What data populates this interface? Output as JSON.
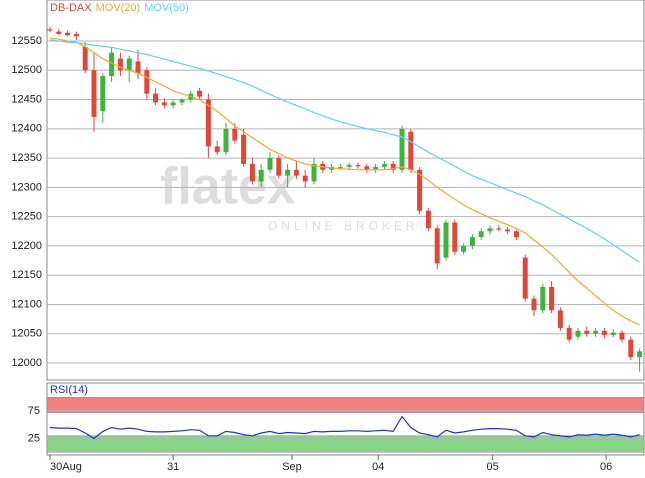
{
  "chart_data": [
    {
      "type": "candlestick",
      "watermark": "flatex",
      "watermark_sub": "ONLINE BROKER",
      "up_color": "#3db53d",
      "down_color": "#e0463a",
      "ylim": [
        11971,
        12620
      ],
      "yticks": [
        12000,
        12050,
        12100,
        12150,
        12200,
        12250,
        12300,
        12350,
        12400,
        12450,
        12500,
        12550
      ],
      "xticks": [
        {
          "value": 0,
          "label": "30Aug"
        },
        {
          "value": 14,
          "label": "31"
        },
        {
          "value": 27.5,
          "label": "Sep"
        },
        {
          "value": 37.3,
          "label": "04"
        },
        {
          "value": 50.3,
          "label": "05"
        },
        {
          "value": 63.2,
          "label": "06"
        }
      ],
      "grid": true,
      "series": [
        {
          "name": "DB-DAX",
          "color": "#e0463a",
          "open": [
            12570,
            12566,
            12564,
            12562,
            12540,
            12500,
            12430,
            12490,
            12520,
            12500,
            12515,
            12500,
            12460,
            12445,
            12440,
            12445,
            12450,
            12465,
            12450,
            12370,
            12360,
            12400,
            12390,
            12340,
            12310,
            12330,
            12350,
            12320,
            12330,
            12320,
            12310,
            12340,
            12330,
            12335,
            12335,
            12338,
            12336,
            12330,
            12335,
            12340,
            12330,
            12395,
            12330,
            12260,
            12230,
            12180,
            12240,
            12190,
            12200,
            12215,
            12225,
            12230,
            12228,
            12225,
            12180,
            12110,
            12090,
            12130,
            12090,
            12060,
            12045,
            12055,
            12050,
            12055,
            12048,
            12052,
            12040,
            12010
          ],
          "high": [
            12574,
            12570,
            12568,
            12566,
            12548,
            12530,
            12495,
            12540,
            12530,
            12525,
            12535,
            12505,
            12470,
            12452,
            12450,
            12452,
            12465,
            12470,
            12460,
            12380,
            12410,
            12410,
            12400,
            12350,
            12340,
            12360,
            12355,
            12340,
            12345,
            12330,
            12350,
            12345,
            12340,
            12340,
            12342,
            12342,
            12340,
            12340,
            12345,
            12345,
            12405,
            12400,
            12335,
            12265,
            12235,
            12245,
            12245,
            12205,
            12220,
            12230,
            12235,
            12235,
            12232,
            12228,
            12185,
            12115,
            12135,
            12140,
            12095,
            12065,
            12060,
            12062,
            12060,
            12060,
            12058,
            12056,
            12045,
            12025
          ],
          "low": [
            12565,
            12560,
            12558,
            12552,
            12495,
            12395,
            12410,
            12480,
            12490,
            12480,
            12485,
            12450,
            12440,
            12435,
            12435,
            12440,
            12445,
            12450,
            12350,
            12355,
            12355,
            12375,
            12335,
            12305,
            12300,
            12325,
            12315,
            12300,
            12315,
            12300,
            12305,
            12325,
            12325,
            12330,
            12330,
            12332,
            12325,
            12325,
            12330,
            12325,
            12325,
            12325,
            12255,
            12225,
            12160,
            12175,
            12185,
            12185,
            12195,
            12210,
            12220,
            12225,
            12220,
            12210,
            12105,
            12080,
            12085,
            12085,
            12055,
            12035,
            12040,
            12045,
            12045,
            12042,
            12044,
            12035,
            12005,
            11985
          ],
          "close": [
            12568,
            12562,
            12560,
            12558,
            12500,
            12420,
            12490,
            12530,
            12500,
            12520,
            12495,
            12460,
            12445,
            12440,
            12445,
            12450,
            12460,
            12455,
            12370,
            12360,
            12400,
            12380,
            12340,
            12310,
            12330,
            12350,
            12320,
            12330,
            12320,
            12310,
            12340,
            12330,
            12335,
            12335,
            12338,
            12336,
            12330,
            12335,
            12340,
            12330,
            12400,
            12330,
            12260,
            12230,
            12170,
            12240,
            12190,
            12200,
            12215,
            12225,
            12230,
            12228,
            12225,
            12215,
            12110,
            12090,
            12130,
            12090,
            12060,
            12040,
            12055,
            12050,
            12055,
            12048,
            12052,
            12040,
            12010,
            12020
          ]
        },
        {
          "name": "MOV(20)",
          "color": "#f5a833",
          "values": [
            12555,
            12553,
            12550,
            12548,
            12540,
            12530,
            12520,
            12512,
            12505,
            12500,
            12495,
            12488,
            12480,
            12473,
            12465,
            12460,
            12455,
            12450,
            12440,
            12430,
            12418,
            12405,
            12395,
            12385,
            12375,
            12365,
            12358,
            12350,
            12345,
            12340,
            12337,
            12335,
            12333,
            12332,
            12331,
            12330,
            12330,
            12330,
            12330,
            12332,
            12335,
            12330,
            12322,
            12312,
            12300,
            12290,
            12280,
            12270,
            12262,
            12255,
            12248,
            12242,
            12236,
            12230,
            12222,
            12210,
            12198,
            12185,
            12170,
            12155,
            12140,
            12128,
            12115,
            12102,
            12090,
            12080,
            12072,
            12065
          ]
        },
        {
          "name": "MOV(50)",
          "color": "#5cd6ea",
          "values": [
            12552,
            12550,
            12548,
            12547,
            12545,
            12543,
            12541,
            12539,
            12536,
            12533,
            12530,
            12527,
            12523,
            12519,
            12515,
            12511,
            12507,
            12503,
            12499,
            12494,
            12489,
            12484,
            12479,
            12473,
            12466,
            12459,
            12452,
            12446,
            12440,
            12434,
            12428,
            12422,
            12417,
            12412,
            12408,
            12404,
            12400,
            12397,
            12394,
            12390,
            12386,
            12378,
            12369,
            12360,
            12352,
            12344,
            12336,
            12328,
            12320,
            12314,
            12308,
            12302,
            12296,
            12290,
            12284,
            12277,
            12270,
            12262,
            12254,
            12246,
            12238,
            12230,
            12221,
            12212,
            12202,
            12192,
            12182,
            12172
          ]
        }
      ]
    },
    {
      "type": "line",
      "ylim": [
        -5,
        126
      ],
      "yticks": [
        25,
        75
      ],
      "bands": [
        {
          "from": 72,
          "to": 100,
          "color": "#f08080"
        },
        {
          "from": 0,
          "to": 30,
          "color": "#86d486"
        }
      ],
      "series": [
        {
          "name": "RSI(14)",
          "color": "#2233cc",
          "values": [
            45,
            44,
            44,
            43,
            35,
            25,
            38,
            45,
            42,
            44,
            42,
            38,
            37,
            37,
            38,
            39,
            41,
            40,
            30,
            30,
            38,
            36,
            32,
            30,
            35,
            38,
            34,
            36,
            35,
            34,
            38,
            37,
            38,
            38,
            39,
            39,
            38,
            39,
            40,
            38,
            65,
            45,
            35,
            32,
            28,
            40,
            35,
            37,
            40,
            42,
            43,
            43,
            42,
            40,
            30,
            28,
            36,
            32,
            30,
            28,
            32,
            31,
            33,
            31,
            33,
            31,
            28,
            32
          ]
        }
      ]
    }
  ]
}
